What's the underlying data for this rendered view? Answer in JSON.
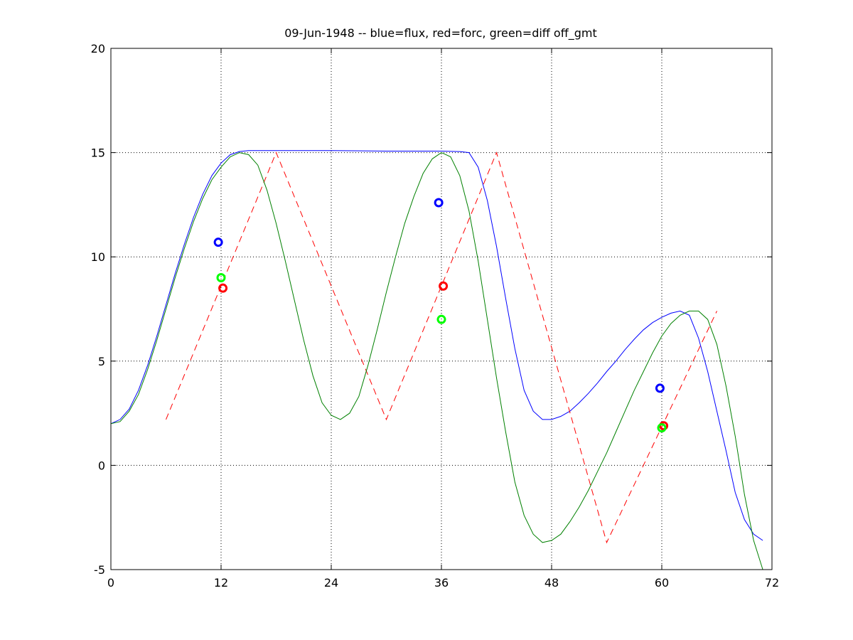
{
  "chart_data": {
    "type": "line",
    "title": "09-Jun-1948 -- blue=flux, red=forc, green=diff off_gmt",
    "xlim": [
      0,
      72
    ],
    "ylim": [
      -5,
      20
    ],
    "xticks": [
      0,
      12,
      24,
      36,
      48,
      60,
      72
    ],
    "yticks": [
      -5,
      0,
      5,
      10,
      15,
      20
    ],
    "grid": true,
    "grid_style": "dotted",
    "series": [
      {
        "color": "#0000ff",
        "line_style": "solid",
        "x": [
          0,
          1,
          2,
          3,
          4,
          5,
          6,
          7,
          8,
          9,
          10,
          11,
          12,
          13,
          14,
          15,
          16,
          17,
          18,
          24,
          30,
          36,
          38,
          39,
          40,
          41,
          42,
          43,
          44,
          45,
          46,
          47,
          48,
          49,
          50,
          51,
          52,
          53,
          54,
          55,
          56,
          57,
          58,
          59,
          60,
          61,
          62,
          63,
          64,
          65,
          66,
          67,
          68,
          69,
          70,
          71
        ],
        "y": [
          2.0,
          2.2,
          2.7,
          3.6,
          4.8,
          6.2,
          7.7,
          9.2,
          10.6,
          11.9,
          13.0,
          13.9,
          14.5,
          14.9,
          15.05,
          15.1,
          15.1,
          15.1,
          15.1,
          15.1,
          15.07,
          15.07,
          15.05,
          15.0,
          14.3,
          12.7,
          10.5,
          8.0,
          5.6,
          3.6,
          2.6,
          2.2,
          2.2,
          2.35,
          2.6,
          3.0,
          3.45,
          3.95,
          4.5,
          5.0,
          5.55,
          6.05,
          6.5,
          6.85,
          7.1,
          7.3,
          7.4,
          7.2,
          6.1,
          4.5,
          2.6,
          0.7,
          -1.3,
          -2.6,
          -3.3,
          -3.6
        ]
      },
      {
        "color": "#ff0000",
        "line_style": "dashed",
        "x": [
          6,
          18,
          30,
          42,
          54,
          66
        ],
        "y": [
          2.2,
          15.0,
          2.2,
          15.0,
          -3.7,
          7.4
        ]
      },
      {
        "color": "#008000",
        "line_style": "solid",
        "x": [
          0,
          1,
          2,
          3,
          4,
          5,
          6,
          7,
          8,
          9,
          10,
          11,
          12,
          13,
          14,
          15,
          16,
          17,
          18,
          19,
          20,
          21,
          22,
          23,
          24,
          25,
          26,
          27,
          28,
          29,
          30,
          31,
          32,
          33,
          34,
          35,
          36,
          37,
          38,
          39,
          40,
          41,
          42,
          43,
          44,
          45,
          46,
          47,
          48,
          49,
          50,
          51,
          52,
          53,
          54,
          55,
          56,
          57,
          58,
          59,
          60,
          61,
          62,
          63,
          64,
          65,
          66,
          67,
          68,
          69,
          70,
          71
        ],
        "y": [
          2.0,
          2.1,
          2.6,
          3.4,
          4.6,
          6.0,
          7.5,
          9.0,
          10.4,
          11.7,
          12.8,
          13.7,
          14.3,
          14.8,
          15.0,
          14.9,
          14.4,
          13.2,
          11.6,
          9.8,
          7.9,
          6.0,
          4.3,
          3.0,
          2.4,
          2.2,
          2.5,
          3.3,
          4.8,
          6.5,
          8.3,
          10.0,
          11.6,
          12.9,
          14.0,
          14.7,
          15.0,
          14.8,
          13.9,
          12.2,
          9.8,
          7.0,
          4.2,
          1.6,
          -0.8,
          -2.4,
          -3.3,
          -3.7,
          -3.6,
          -3.3,
          -2.7,
          -2.0,
          -1.2,
          -0.3,
          0.6,
          1.6,
          2.6,
          3.6,
          4.5,
          5.4,
          6.2,
          6.8,
          7.2,
          7.4,
          7.4,
          7.0,
          5.8,
          3.8,
          1.4,
          -1.4,
          -3.6,
          -5.0
        ]
      }
    ],
    "markers": [
      {
        "x": 11.7,
        "y": 10.7,
        "color": "#0000ff"
      },
      {
        "x": 35.7,
        "y": 12.6,
        "color": "#0000ff"
      },
      {
        "x": 59.8,
        "y": 3.7,
        "color": "#0000ff"
      },
      {
        "x": 12.2,
        "y": 8.5,
        "color": "#ff0000"
      },
      {
        "x": 36.2,
        "y": 8.6,
        "color": "#ff0000"
      },
      {
        "x": 60.2,
        "y": 1.9,
        "color": "#ff0000"
      },
      {
        "x": 12.0,
        "y": 9.0,
        "color": "#00ff00"
      },
      {
        "x": 36.0,
        "y": 7.0,
        "color": "#00ff00"
      },
      {
        "x": 60.0,
        "y": 1.8,
        "color": "#00ff00"
      }
    ]
  }
}
